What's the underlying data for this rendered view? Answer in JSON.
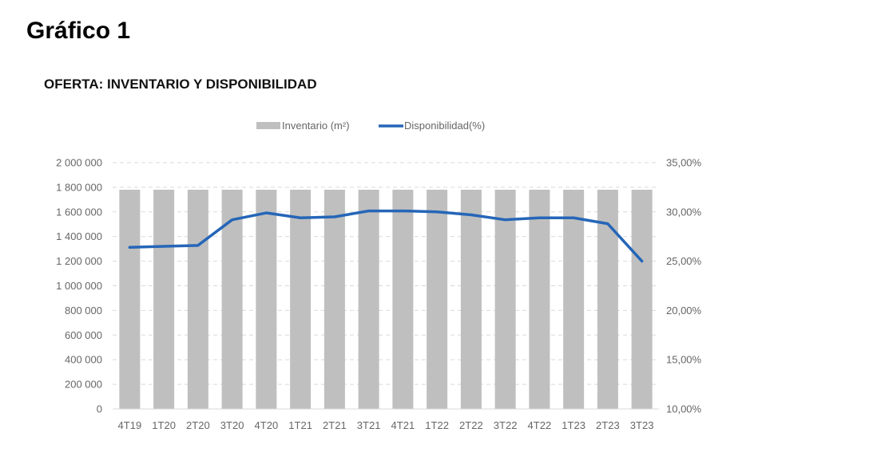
{
  "figure_title": "Gráfico 1",
  "chart_data": {
    "type": "bar+line",
    "title": "OFERTA: INVENTARIO Y DISPONIBILIDAD",
    "categories": [
      "4T19",
      "1T20",
      "2T20",
      "3T20",
      "4T20",
      "1T21",
      "2T21",
      "3T21",
      "4T21",
      "1T22",
      "2T22",
      "3T22",
      "4T22",
      "1T23",
      "2T23",
      "3T23"
    ],
    "series": [
      {
        "name": "Inventario (m²)",
        "type": "bar",
        "axis": "left",
        "color": "#bfbfbf",
        "values": [
          1780000,
          1780000,
          1780000,
          1780000,
          1780000,
          1780000,
          1780000,
          1780000,
          1780000,
          1780000,
          1780000,
          1780000,
          1780000,
          1780000,
          1780000,
          1780000
        ]
      },
      {
        "name": "Disponibilidad(%)",
        "type": "line",
        "axis": "right",
        "color": "#2566b8",
        "values": [
          26.4,
          26.5,
          26.6,
          29.2,
          29.9,
          29.4,
          29.5,
          30.1,
          30.1,
          30.0,
          29.7,
          29.2,
          29.4,
          29.4,
          28.8,
          25.0
        ]
      }
    ],
    "y_left": {
      "lim": [
        0,
        2000000
      ],
      "ticks": [
        "0",
        "200 000",
        "400 000",
        "600 000",
        "800 000",
        "1 000 000",
        "1 200 000",
        "1 400 000",
        "1 600 000",
        "1 800 000",
        "2 000 000"
      ]
    },
    "y_right": {
      "lim": [
        10,
        35
      ],
      "ticks": [
        "10,00%",
        "15,00%",
        "20,00%",
        "25,00%",
        "30,00%",
        "35,00%"
      ]
    },
    "grid": "horizontal dashed",
    "legend": "top-center"
  }
}
